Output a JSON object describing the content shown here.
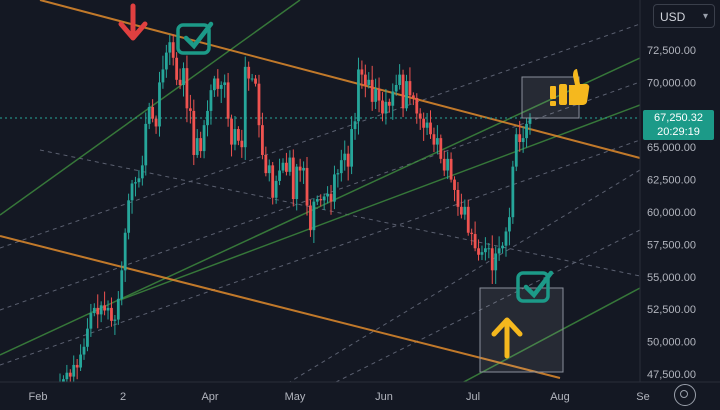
{
  "currency_selector": {
    "label": "USD"
  },
  "last_price": {
    "value": "67,250.32",
    "countdown": "20:29:19"
  },
  "colors": {
    "background": "#141823",
    "up": "#26a69a",
    "down": "#ef5350",
    "orange_line": "#e08a2c",
    "green_line": "#3f8f3f",
    "annotation_teal": "#1c9a88",
    "arrow_red": "#e04040",
    "arrow_yellow": "#f5b81e"
  },
  "icons": [
    "red-down-arrow-icon",
    "teal-check-icon",
    "thumbs-up-icon",
    "exclamation-icon",
    "yellow-up-arrow-icon",
    "settings-gear-icon"
  ],
  "chart_data": {
    "type": "candlestick",
    "y_ticks": [
      "72,500.00",
      "70,000.00",
      "67,500.00",
      "65,000.00",
      "62,500.00",
      "60,000.00",
      "57,500.00",
      "55,000.00",
      "52,500.00",
      "50,000.00",
      "47,500.00"
    ],
    "x_ticks": [
      "Feb",
      "2",
      "Apr",
      "May",
      "Jun",
      "Jul",
      "Aug",
      "Se"
    ],
    "ylim": [
      46700,
      74500
    ],
    "last_price": 67250.32,
    "grid": false,
    "closes": [
      46900,
      47100,
      47600,
      47300,
      48200,
      48000,
      49000,
      49600,
      51000,
      52200,
      52600,
      52100,
      52800,
      52400,
      52600,
      51600,
      51700,
      53300,
      55500,
      58400,
      60900,
      62200,
      62300,
      62600,
      63600,
      66800,
      68100,
      67200,
      66600,
      70000,
      71000,
      72300,
      73100,
      71900,
      70200,
      69800,
      71100,
      68000,
      67800,
      64400,
      65700,
      64700,
      66700,
      67800,
      69400,
      70300,
      69500,
      69800,
      70000,
      67200,
      65200,
      66400,
      65500,
      65000,
      71200,
      70300,
      70300,
      69900,
      66700,
      64400,
      63000,
      63600,
      61100,
      62400,
      63200,
      63800,
      63100,
      64200,
      61000,
      63500,
      63200,
      63400,
      60500,
      58600,
      60800,
      61000,
      60900,
      61200,
      61400,
      60800,
      62900,
      63000,
      64000,
      64500,
      63500,
      66400,
      67000,
      71000,
      70600,
      69800,
      70200,
      68500,
      69500,
      68600,
      67600,
      68500,
      68200,
      69300,
      69800,
      70600,
      68000,
      70100,
      69000,
      68800,
      67600,
      67200,
      66500,
      66900,
      66000,
      65200,
      65700,
      64100,
      63200,
      64100,
      62500,
      61700,
      60400,
      59800,
      60400,
      58400,
      58300,
      57200,
      56700,
      56900,
      57200,
      57200,
      55500,
      56800,
      57200,
      57400,
      58500,
      59600,
      63500,
      66000,
      65400,
      65700,
      66800,
      67300
    ]
  }
}
